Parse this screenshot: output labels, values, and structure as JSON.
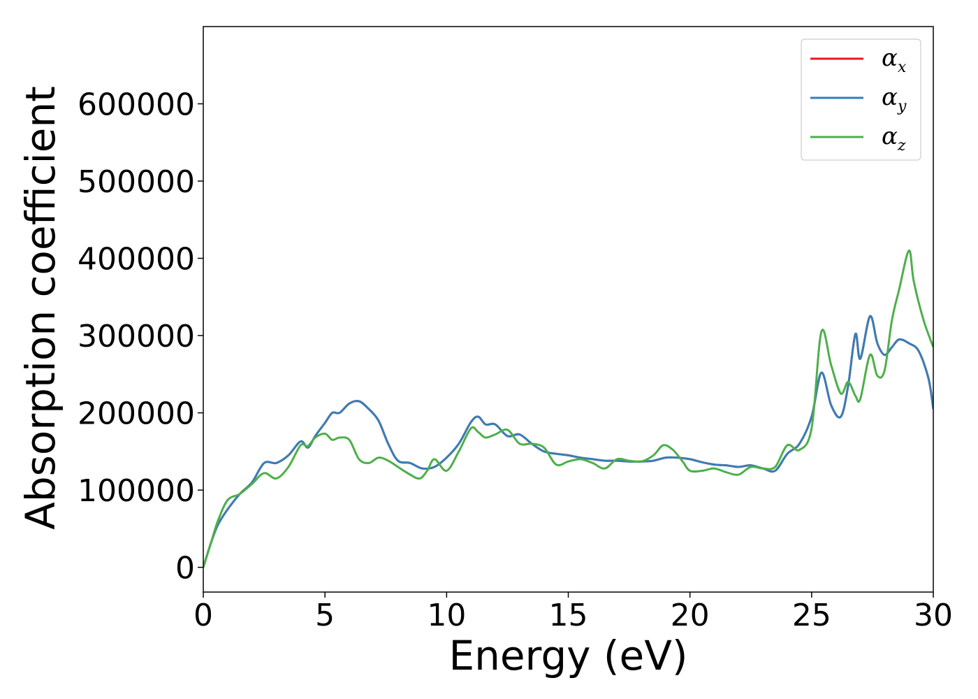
{
  "chart_data": {
    "type": "line",
    "title": "",
    "xlabel": "Energy (eV)",
    "ylabel": "Absorption coefficient",
    "xlim": [
      0,
      30
    ],
    "ylim": [
      -32000,
      700000
    ],
    "xticks": [
      0,
      5,
      10,
      15,
      20,
      25,
      30
    ],
    "yticks": [
      0,
      100000,
      200000,
      300000,
      400000,
      500000,
      600000
    ],
    "grid": false,
    "legend_position": "top-right",
    "series": [
      {
        "name": "αx",
        "legend_base": "α",
        "legend_sub": "x",
        "color": "#e41a1c",
        "x": [
          0,
          0.3,
          0.6,
          1.0,
          1.5,
          2.0,
          2.5,
          3.0,
          3.5,
          4.0,
          4.3,
          4.6,
          5.0,
          5.3,
          5.6,
          6.0,
          6.4,
          6.8,
          7.2,
          7.6,
          8.0,
          8.5,
          9.0,
          9.5,
          10.0,
          10.5,
          11.0,
          11.3,
          11.6,
          12.0,
          12.5,
          13.0,
          13.5,
          14.0,
          14.5,
          15.0,
          15.5,
          16.0,
          16.5,
          17.0,
          17.5,
          18.0,
          18.5,
          19.0,
          19.5,
          20.0,
          20.5,
          21.0,
          21.5,
          22.0,
          22.5,
          23.0,
          23.5,
          24.0,
          24.5,
          25.0,
          25.4,
          25.8,
          26.2,
          26.5,
          26.8,
          27.0,
          27.4,
          27.7,
          28.0,
          28.3,
          28.6,
          29.0,
          29.4,
          29.8,
          30.0
        ],
        "values": [
          0,
          30000,
          55000,
          75000,
          95000,
          110000,
          135000,
          135000,
          145000,
          163000,
          155000,
          170000,
          187000,
          200000,
          200000,
          212000,
          215000,
          205000,
          190000,
          160000,
          138000,
          135000,
          128000,
          130000,
          142000,
          160000,
          188000,
          195000,
          185000,
          185000,
          170000,
          172000,
          160000,
          150000,
          147000,
          145000,
          142000,
          140000,
          138000,
          138000,
          137000,
          137000,
          138000,
          142000,
          142000,
          140000,
          136000,
          133000,
          132000,
          130000,
          132000,
          128000,
          125000,
          147000,
          160000,
          195000,
          252000,
          210000,
          195000,
          235000,
          302000,
          270000,
          325000,
          290000,
          275000,
          285000,
          295000,
          290000,
          280000,
          245000,
          205000
        ]
      },
      {
        "name": "αy",
        "legend_base": "α",
        "legend_sub": "y",
        "color": "#377eb8",
        "x": [
          0,
          0.3,
          0.6,
          1.0,
          1.5,
          2.0,
          2.5,
          3.0,
          3.5,
          4.0,
          4.3,
          4.6,
          5.0,
          5.3,
          5.6,
          6.0,
          6.4,
          6.8,
          7.2,
          7.6,
          8.0,
          8.5,
          9.0,
          9.5,
          10.0,
          10.5,
          11.0,
          11.3,
          11.6,
          12.0,
          12.5,
          13.0,
          13.5,
          14.0,
          14.5,
          15.0,
          15.5,
          16.0,
          16.5,
          17.0,
          17.5,
          18.0,
          18.5,
          19.0,
          19.5,
          20.0,
          20.5,
          21.0,
          21.5,
          22.0,
          22.5,
          23.0,
          23.5,
          24.0,
          24.5,
          25.0,
          25.4,
          25.8,
          26.2,
          26.5,
          26.8,
          27.0,
          27.4,
          27.7,
          28.0,
          28.3,
          28.6,
          29.0,
          29.4,
          29.8,
          30.0
        ],
        "values": [
          0,
          30000,
          55000,
          75000,
          95000,
          110000,
          135000,
          135000,
          145000,
          163000,
          155000,
          170000,
          187000,
          200000,
          200000,
          212000,
          215000,
          205000,
          190000,
          160000,
          138000,
          135000,
          128000,
          130000,
          142000,
          160000,
          188000,
          195000,
          185000,
          185000,
          170000,
          172000,
          160000,
          150000,
          147000,
          145000,
          142000,
          140000,
          138000,
          138000,
          137000,
          137000,
          138000,
          142000,
          142000,
          140000,
          136000,
          133000,
          132000,
          130000,
          132000,
          128000,
          125000,
          147000,
          160000,
          195000,
          252000,
          210000,
          195000,
          235000,
          302000,
          270000,
          325000,
          290000,
          275000,
          285000,
          295000,
          290000,
          280000,
          245000,
          205000
        ]
      },
      {
        "name": "αz",
        "legend_base": "α",
        "legend_sub": "z",
        "color": "#4daf4a",
        "x": [
          0,
          0.3,
          0.6,
          1.0,
          1.5,
          2.0,
          2.5,
          3.0,
          3.5,
          4.0,
          4.3,
          4.6,
          5.0,
          5.3,
          5.6,
          6.0,
          6.4,
          6.8,
          7.2,
          7.6,
          8.0,
          8.5,
          8.9,
          9.2,
          9.5,
          10.0,
          10.5,
          11.0,
          11.3,
          11.6,
          12.0,
          12.5,
          13.0,
          13.5,
          14.0,
          14.5,
          15.0,
          15.5,
          16.0,
          16.5,
          17.0,
          17.5,
          18.0,
          18.5,
          18.9,
          19.3,
          19.7,
          20.0,
          20.5,
          21.0,
          21.5,
          22.0,
          22.5,
          23.0,
          23.5,
          24.0,
          24.5,
          25.0,
          25.4,
          25.8,
          26.2,
          26.5,
          26.8,
          27.0,
          27.4,
          27.7,
          28.0,
          28.3,
          28.6,
          29.0,
          29.2,
          29.6,
          30.0
        ],
        "values": [
          0,
          30000,
          60000,
          87000,
          95000,
          108000,
          122000,
          115000,
          130000,
          158000,
          157000,
          168000,
          173000,
          165000,
          168000,
          165000,
          140000,
          135000,
          142000,
          138000,
          130000,
          120000,
          115000,
          125000,
          140000,
          125000,
          150000,
          180000,
          175000,
          168000,
          172000,
          178000,
          160000,
          160000,
          155000,
          133000,
          137000,
          140000,
          135000,
          128000,
          140000,
          138000,
          137000,
          145000,
          158000,
          152000,
          137000,
          125000,
          125000,
          128000,
          123000,
          120000,
          130000,
          128000,
          130000,
          158000,
          152000,
          180000,
          305000,
          262000,
          225000,
          240000,
          222000,
          218000,
          275000,
          248000,
          255000,
          320000,
          360000,
          410000,
          370000,
          320000,
          285000
        ]
      }
    ]
  }
}
